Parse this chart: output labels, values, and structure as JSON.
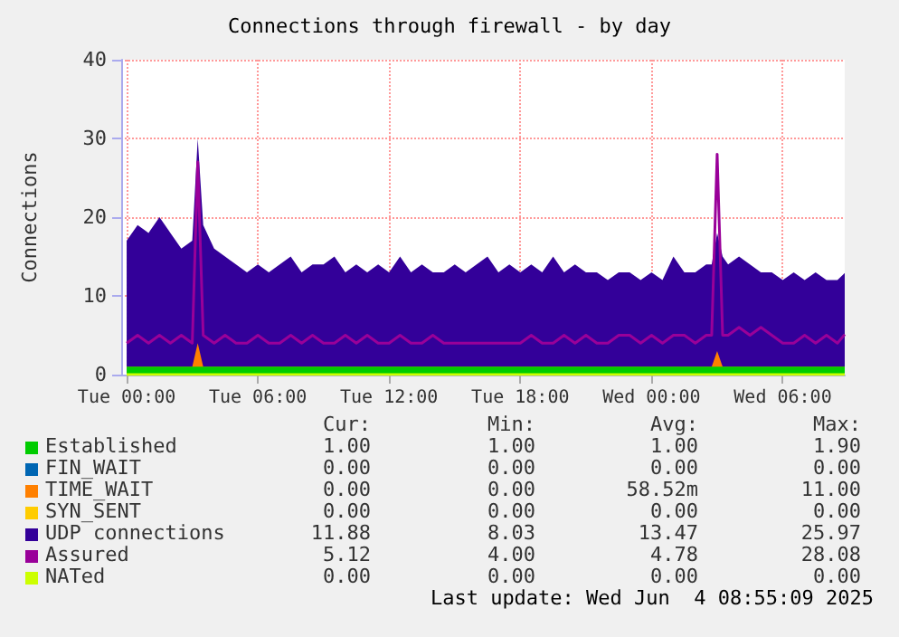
{
  "chart_data": {
    "type": "area",
    "title": "Connections through firewall - by day",
    "ylabel": "Connections",
    "stacked": true,
    "grid": true,
    "legend": "bottom",
    "marker": "none",
    "xlim": [
      "2025-06-02T23:45",
      "2025-06-04T08:50"
    ],
    "xticks": [
      {
        "value": "2025-06-03T00:00",
        "label": "Tue 00:00"
      },
      {
        "value": "2025-06-03T06:00",
        "label": "Tue 06:00"
      },
      {
        "value": "2025-06-03T12:00",
        "label": "Tue 12:00"
      },
      {
        "value": "2025-06-03T18:00",
        "label": "Tue 18:00"
      },
      {
        "value": "2025-06-04T00:00",
        "label": "Wed 00:00"
      },
      {
        "value": "2025-06-04T06:00",
        "label": "Wed 06:00"
      }
    ],
    "ylim": [
      0,
      40
    ],
    "yticks": [
      0,
      10,
      20,
      30,
      40
    ],
    "x": [
      "2025-06-03T00:00",
      "2025-06-03T00:30",
      "2025-06-03T01:00",
      "2025-06-03T01:30",
      "2025-06-03T02:00",
      "2025-06-03T02:30",
      "2025-06-03T03:00",
      "2025-06-03T03:15",
      "2025-06-03T03:30",
      "2025-06-03T04:00",
      "2025-06-03T04:30",
      "2025-06-03T05:00",
      "2025-06-03T05:30",
      "2025-06-03T06:00",
      "2025-06-03T06:30",
      "2025-06-03T07:00",
      "2025-06-03T07:30",
      "2025-06-03T08:00",
      "2025-06-03T08:30",
      "2025-06-03T09:00",
      "2025-06-03T09:30",
      "2025-06-03T10:00",
      "2025-06-03T10:30",
      "2025-06-03T11:00",
      "2025-06-03T11:30",
      "2025-06-03T12:00",
      "2025-06-03T12:30",
      "2025-06-03T13:00",
      "2025-06-03T13:30",
      "2025-06-03T14:00",
      "2025-06-03T14:30",
      "2025-06-03T15:00",
      "2025-06-03T15:30",
      "2025-06-03T16:00",
      "2025-06-03T16:30",
      "2025-06-03T17:00",
      "2025-06-03T17:30",
      "2025-06-03T18:00",
      "2025-06-03T18:30",
      "2025-06-03T19:00",
      "2025-06-03T19:30",
      "2025-06-03T20:00",
      "2025-06-03T20:30",
      "2025-06-03T21:00",
      "2025-06-03T21:30",
      "2025-06-03T22:00",
      "2025-06-03T22:30",
      "2025-06-03T23:00",
      "2025-06-03T23:30",
      "2025-06-04T00:00",
      "2025-06-04T00:30",
      "2025-06-04T01:00",
      "2025-06-04T01:30",
      "2025-06-04T02:00",
      "2025-06-04T02:30",
      "2025-06-04T02:45",
      "2025-06-04T03:00",
      "2025-06-04T03:15",
      "2025-06-04T03:30",
      "2025-06-04T04:00",
      "2025-06-04T04:30",
      "2025-06-04T05:00",
      "2025-06-04T05:30",
      "2025-06-04T06:00",
      "2025-06-04T06:30",
      "2025-06-04T07:00",
      "2025-06-04T07:30",
      "2025-06-04T08:00",
      "2025-06-04T08:30",
      "2025-06-04T08:50"
    ],
    "series": [
      {
        "name": "Established",
        "color": "#00cc00",
        "values": [
          1,
          1,
          1,
          1,
          1,
          1,
          1,
          1,
          1,
          1,
          1,
          1,
          1,
          1,
          1,
          1,
          1,
          1,
          1,
          1,
          1,
          1,
          1,
          1,
          1,
          1,
          1,
          1,
          1,
          1,
          1,
          1,
          1,
          1,
          1,
          1,
          1,
          1,
          1,
          1,
          1,
          1,
          1,
          1,
          1,
          1,
          1,
          1,
          1,
          1,
          1,
          1,
          1,
          1,
          1,
          1,
          1,
          1,
          1,
          1,
          1,
          1,
          1,
          1,
          1,
          1,
          1,
          1,
          1,
          1
        ]
      },
      {
        "name": "FIN_WAIT",
        "color": "#0066b3",
        "type": "line",
        "values": [
          null,
          null,
          null,
          null,
          null,
          null,
          null,
          null,
          null,
          null,
          null,
          null,
          null,
          null,
          null,
          null,
          null,
          null,
          null,
          null,
          null,
          null,
          null,
          null,
          null,
          null,
          null,
          null,
          null,
          null,
          null,
          null,
          null,
          null,
          null,
          null,
          null,
          null,
          null,
          null,
          null,
          null,
          null,
          null,
          null,
          null,
          null,
          null,
          null,
          null,
          null,
          null,
          null,
          null,
          null,
          null,
          null,
          null,
          null,
          null,
          null,
          null,
          null,
          null,
          null,
          null,
          null,
          null,
          null,
          null
        ]
      },
      {
        "name": "TIME_WAIT",
        "color": "#ff8000",
        "values": [
          0,
          0,
          0,
          0,
          0,
          0,
          0,
          3,
          0,
          0,
          0,
          0,
          0,
          0,
          0,
          0,
          0,
          0,
          0,
          0,
          0,
          0,
          0,
          0,
          0,
          0,
          0,
          0,
          0,
          0,
          0,
          0,
          0,
          0,
          0,
          0,
          0,
          0,
          0,
          0,
          0,
          0,
          0,
          0,
          0,
          0,
          0,
          0,
          0,
          0,
          0,
          0,
          0,
          0,
          0,
          0,
          2,
          0,
          0,
          0,
          0,
          0,
          0,
          0,
          0,
          0,
          0,
          0,
          0,
          0
        ]
      },
      {
        "name": "SYN_SENT",
        "color": "#ffcc00",
        "type": "line",
        "values": [
          null,
          null,
          null,
          null,
          null,
          null,
          null,
          null,
          null,
          null,
          null,
          null,
          null,
          null,
          null,
          null,
          null,
          null,
          null,
          null,
          null,
          null,
          null,
          null,
          null,
          null,
          null,
          null,
          null,
          null,
          null,
          null,
          null,
          null,
          null,
          null,
          null,
          null,
          null,
          null,
          null,
          null,
          null,
          null,
          null,
          null,
          null,
          null,
          null,
          null,
          null,
          null,
          null,
          null,
          null,
          null,
          null,
          null,
          null,
          null,
          null,
          null,
          null,
          null,
          null,
          null,
          null,
          null,
          null,
          null
        ]
      },
      {
        "name": "UDP connections",
        "color": "#330099",
        "values": [
          16,
          18,
          17,
          19,
          17,
          15,
          16,
          26,
          18,
          15,
          14,
          13,
          12,
          13,
          12,
          13,
          14,
          12,
          13,
          13,
          14,
          12,
          13,
          12,
          13,
          12,
          14,
          12,
          13,
          12,
          12,
          13,
          12,
          13,
          14,
          12,
          13,
          12,
          13,
          12,
          14,
          12,
          13,
          12,
          12,
          11,
          12,
          12,
          11,
          12,
          11,
          14,
          12,
          12,
          13,
          13,
          15,
          14,
          13,
          14,
          13,
          12,
          12,
          11,
          12,
          11,
          12,
          11,
          11,
          11.9
        ]
      },
      {
        "name": "Assured",
        "color": "#990099",
        "type": "line",
        "values": [
          4,
          5,
          4,
          5,
          4,
          5,
          4,
          27,
          5,
          4,
          5,
          4,
          4,
          5,
          4,
          4,
          5,
          4,
          5,
          4,
          4,
          5,
          4,
          5,
          4,
          4,
          5,
          4,
          4,
          5,
          4,
          4,
          4,
          4,
          4,
          4,
          4,
          4,
          5,
          4,
          4,
          5,
          4,
          5,
          4,
          4,
          5,
          5,
          4,
          5,
          4,
          5,
          5,
          4,
          5,
          5,
          28,
          5,
          5,
          6,
          5,
          6,
          5,
          4,
          4,
          5,
          4,
          5,
          4,
          5.1
        ]
      },
      {
        "name": "NATed",
        "color": "#ccff00",
        "type": "line",
        "values": [
          0,
          0,
          0,
          0,
          0,
          0,
          0,
          0,
          0,
          0,
          0,
          0,
          0,
          0,
          0,
          0,
          0,
          0,
          0,
          0,
          0,
          0,
          0,
          0,
          0,
          0,
          0,
          0,
          0,
          0,
          0,
          0,
          0,
          0,
          0,
          0,
          0,
          0,
          0,
          0,
          0,
          0,
          0,
          0,
          0,
          0,
          0,
          0,
          0,
          0,
          0,
          0,
          0,
          0,
          0,
          0,
          0,
          0,
          0,
          0,
          0,
          0,
          0,
          0,
          0,
          0,
          0,
          0,
          0,
          0
        ]
      }
    ],
    "annotations": [
      "Cur:",
      "Min:",
      "Avg:",
      "Max:",
      "1.00",
      "1.00",
      "1.00",
      "1.90",
      "0.00",
      "0.00",
      "0.00",
      "0.00",
      "0.00",
      "0.00",
      "58.52m",
      "11.00",
      "0.00",
      "0.00",
      "0.00",
      "0.00",
      "11.88",
      "8.03",
      "13.47",
      "25.97",
      "5.12",
      "4.00",
      "4.78",
      "28.08",
      "0.00",
      "0.00",
      "0.00",
      "0.00",
      "Last update: Wed Jun  4 08:55:09 2025"
    ]
  }
}
